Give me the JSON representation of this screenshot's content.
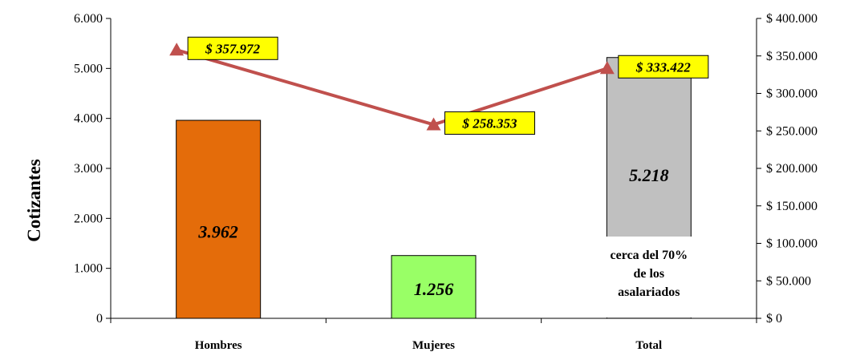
{
  "chart_data": {
    "type": "bar",
    "categories": [
      "Hombres",
      "Mujeres",
      "Total"
    ],
    "ylabel": "Cotizantes",
    "ylim": [
      0,
      6000
    ],
    "y_ticks": [
      0,
      1000,
      2000,
      3000,
      4000,
      5000,
      6000
    ],
    "y_tick_labels": [
      "0",
      "1.000",
      "2.000",
      "3.000",
      "4.000",
      "5.000",
      "6.000"
    ],
    "y2lim": [
      0,
      400000
    ],
    "y2_ticks": [
      0,
      50000,
      100000,
      150000,
      200000,
      250000,
      300000,
      350000,
      400000
    ],
    "y2_tick_labels": [
      "$ 0",
      "$ 50.000",
      "$ 100.000",
      "$ 150.000",
      "$ 200.000",
      "$ 250.000",
      "$ 300.000",
      "$ 350.000",
      "$ 400.000"
    ],
    "bars": {
      "values": [
        3962,
        1256,
        5218
      ],
      "labels": [
        "3.962",
        "1.256",
        "5.218"
      ],
      "colors": [
        "#E46C0A",
        "#99FF66",
        "#C0C0C0"
      ]
    },
    "line": {
      "values": [
        357972,
        258353,
        333422
      ],
      "labels": [
        "$ 357.972",
        "$ 258.353",
        "$ 333.422"
      ],
      "color": "#C0504D",
      "label_background": "#FFFF00"
    },
    "annotation": [
      "cerca del 70%",
      "de los",
      "asalariados"
    ],
    "grid": false,
    "legend": "none"
  }
}
